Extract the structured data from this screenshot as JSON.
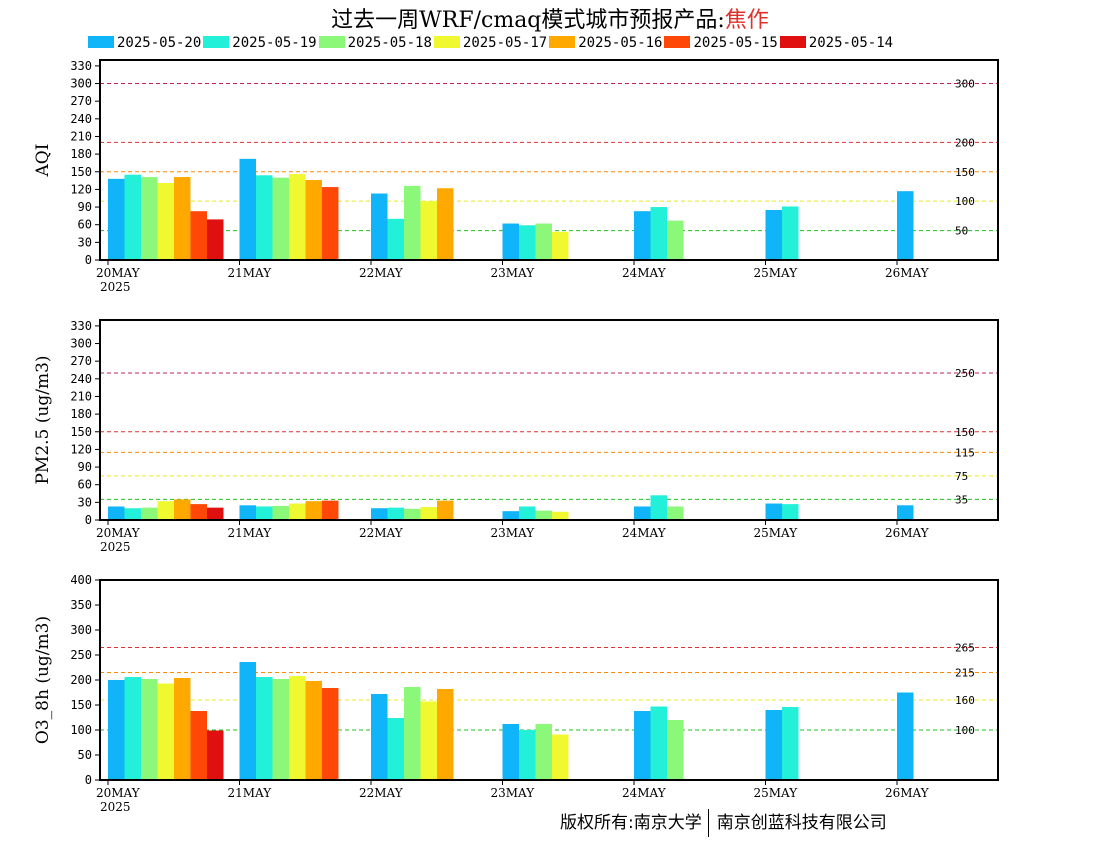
{
  "title": {
    "main": "过去一周WRF/cmaq模式城市预报产品:",
    "city": "焦作"
  },
  "legend": [
    {
      "label": "2025-05-20",
      "color": "#10b4f8"
    },
    {
      "label": "2025-05-19",
      "color": "#22f0d8"
    },
    {
      "label": "2025-05-18",
      "color": "#8cf87a"
    },
    {
      "label": "2025-05-17",
      "color": "#f0f830"
    },
    {
      "label": "2025-05-16",
      "color": "#ffa800"
    },
    {
      "label": "2025-05-15",
      "color": "#ff4808"
    },
    {
      "label": "2025-05-14",
      "color": "#e01010"
    }
  ],
  "copyright": {
    "left": "版权所有:南京大学",
    "right": "南京创蓝科技有限公司"
  },
  "chart_data": [
    {
      "type": "bar",
      "ylabel": "AQI",
      "ylim": [
        0,
        340
      ],
      "yticks": [
        0,
        30,
        60,
        90,
        120,
        150,
        180,
        210,
        240,
        270,
        300,
        330
      ],
      "categories": [
        "20MAY",
        "21MAY",
        "22MAY",
        "23MAY",
        "24MAY",
        "25MAY",
        "26MAY"
      ],
      "year_label": "2025",
      "thresholds": [
        {
          "value": 300,
          "label": "300",
          "color": "#c02060"
        },
        {
          "value": 200,
          "label": "200",
          "color": "#e03030"
        },
        {
          "value": 150,
          "label": "150",
          "color": "#ff8c00"
        },
        {
          "value": 100,
          "label": "100",
          "color": "#e8e820"
        },
        {
          "value": 50,
          "label": "50",
          "color": "#20c020"
        }
      ],
      "series": [
        {
          "values": [
            138,
            172,
            113,
            62,
            83,
            85,
            117
          ]
        },
        {
          "values": [
            145,
            144,
            70,
            59,
            90,
            91,
            null
          ]
        },
        {
          "values": [
            141,
            140,
            126,
            62,
            67,
            null,
            null
          ]
        },
        {
          "values": [
            131,
            146,
            100,
            48,
            null,
            null,
            null
          ]
        },
        {
          "values": [
            141,
            136,
            122,
            null,
            null,
            null,
            null
          ]
        },
        {
          "values": [
            83,
            124,
            null,
            null,
            null,
            null,
            null
          ]
        },
        {
          "values": [
            69,
            null,
            null,
            null,
            null,
            null,
            null
          ]
        }
      ]
    },
    {
      "type": "bar",
      "ylabel": "PM2.5 (ug/m3)",
      "ylim": [
        0,
        340
      ],
      "yticks": [
        0,
        30,
        60,
        90,
        120,
        150,
        180,
        210,
        240,
        270,
        300,
        330
      ],
      "categories": [
        "20MAY",
        "21MAY",
        "22MAY",
        "23MAY",
        "24MAY",
        "25MAY",
        "26MAY"
      ],
      "year_label": "2025",
      "thresholds": [
        {
          "value": 250,
          "label": "250",
          "color": "#c02060"
        },
        {
          "value": 150,
          "label": "150",
          "color": "#e03030"
        },
        {
          "value": 115,
          "label": "115",
          "color": "#ff8c00"
        },
        {
          "value": 75,
          "label": "75",
          "color": "#e8e820"
        },
        {
          "value": 35,
          "label": "35",
          "color": "#20c020"
        }
      ],
      "series": [
        {
          "values": [
            23,
            25,
            20,
            15,
            23,
            28,
            25
          ]
        },
        {
          "values": [
            20,
            23,
            21,
            23,
            42,
            27,
            null
          ]
        },
        {
          "values": [
            21,
            24,
            19,
            16,
            23,
            null,
            null
          ]
        },
        {
          "values": [
            32,
            28,
            22,
            14,
            null,
            null,
            null
          ]
        },
        {
          "values": [
            35,
            32,
            33,
            null,
            null,
            null,
            null
          ]
        },
        {
          "values": [
            27,
            33,
            null,
            null,
            null,
            null,
            null
          ]
        },
        {
          "values": [
            21,
            null,
            null,
            null,
            null,
            null,
            null
          ]
        }
      ]
    },
    {
      "type": "bar",
      "ylabel": "O3_8h (ug/m3)",
      "ylim": [
        0,
        400
      ],
      "yticks": [
        0,
        50,
        100,
        150,
        200,
        250,
        300,
        350,
        400
      ],
      "categories": [
        "20MAY",
        "21MAY",
        "22MAY",
        "23MAY",
        "24MAY",
        "25MAY",
        "26MAY"
      ],
      "year_label": "2025",
      "thresholds": [
        {
          "value": 265,
          "label": "265",
          "color": "#e03030"
        },
        {
          "value": 215,
          "label": "215",
          "color": "#ff8c00"
        },
        {
          "value": 160,
          "label": "160",
          "color": "#e8e820"
        },
        {
          "value": 100,
          "label": "100",
          "color": "#20c020"
        }
      ],
      "series": [
        {
          "values": [
            200,
            236,
            172,
            112,
            138,
            140,
            175
          ]
        },
        {
          "values": [
            206,
            206,
            124,
            100,
            147,
            146,
            null
          ]
        },
        {
          "values": [
            202,
            202,
            186,
            112,
            120,
            null,
            null
          ]
        },
        {
          "values": [
            193,
            208,
            157,
            91,
            null,
            null,
            null
          ]
        },
        {
          "values": [
            204,
            198,
            182,
            null,
            null,
            null,
            null
          ]
        },
        {
          "values": [
            138,
            184,
            null,
            null,
            null,
            null,
            null
          ]
        },
        {
          "values": [
            99,
            null,
            null,
            null,
            null,
            null,
            null
          ]
        }
      ]
    }
  ]
}
